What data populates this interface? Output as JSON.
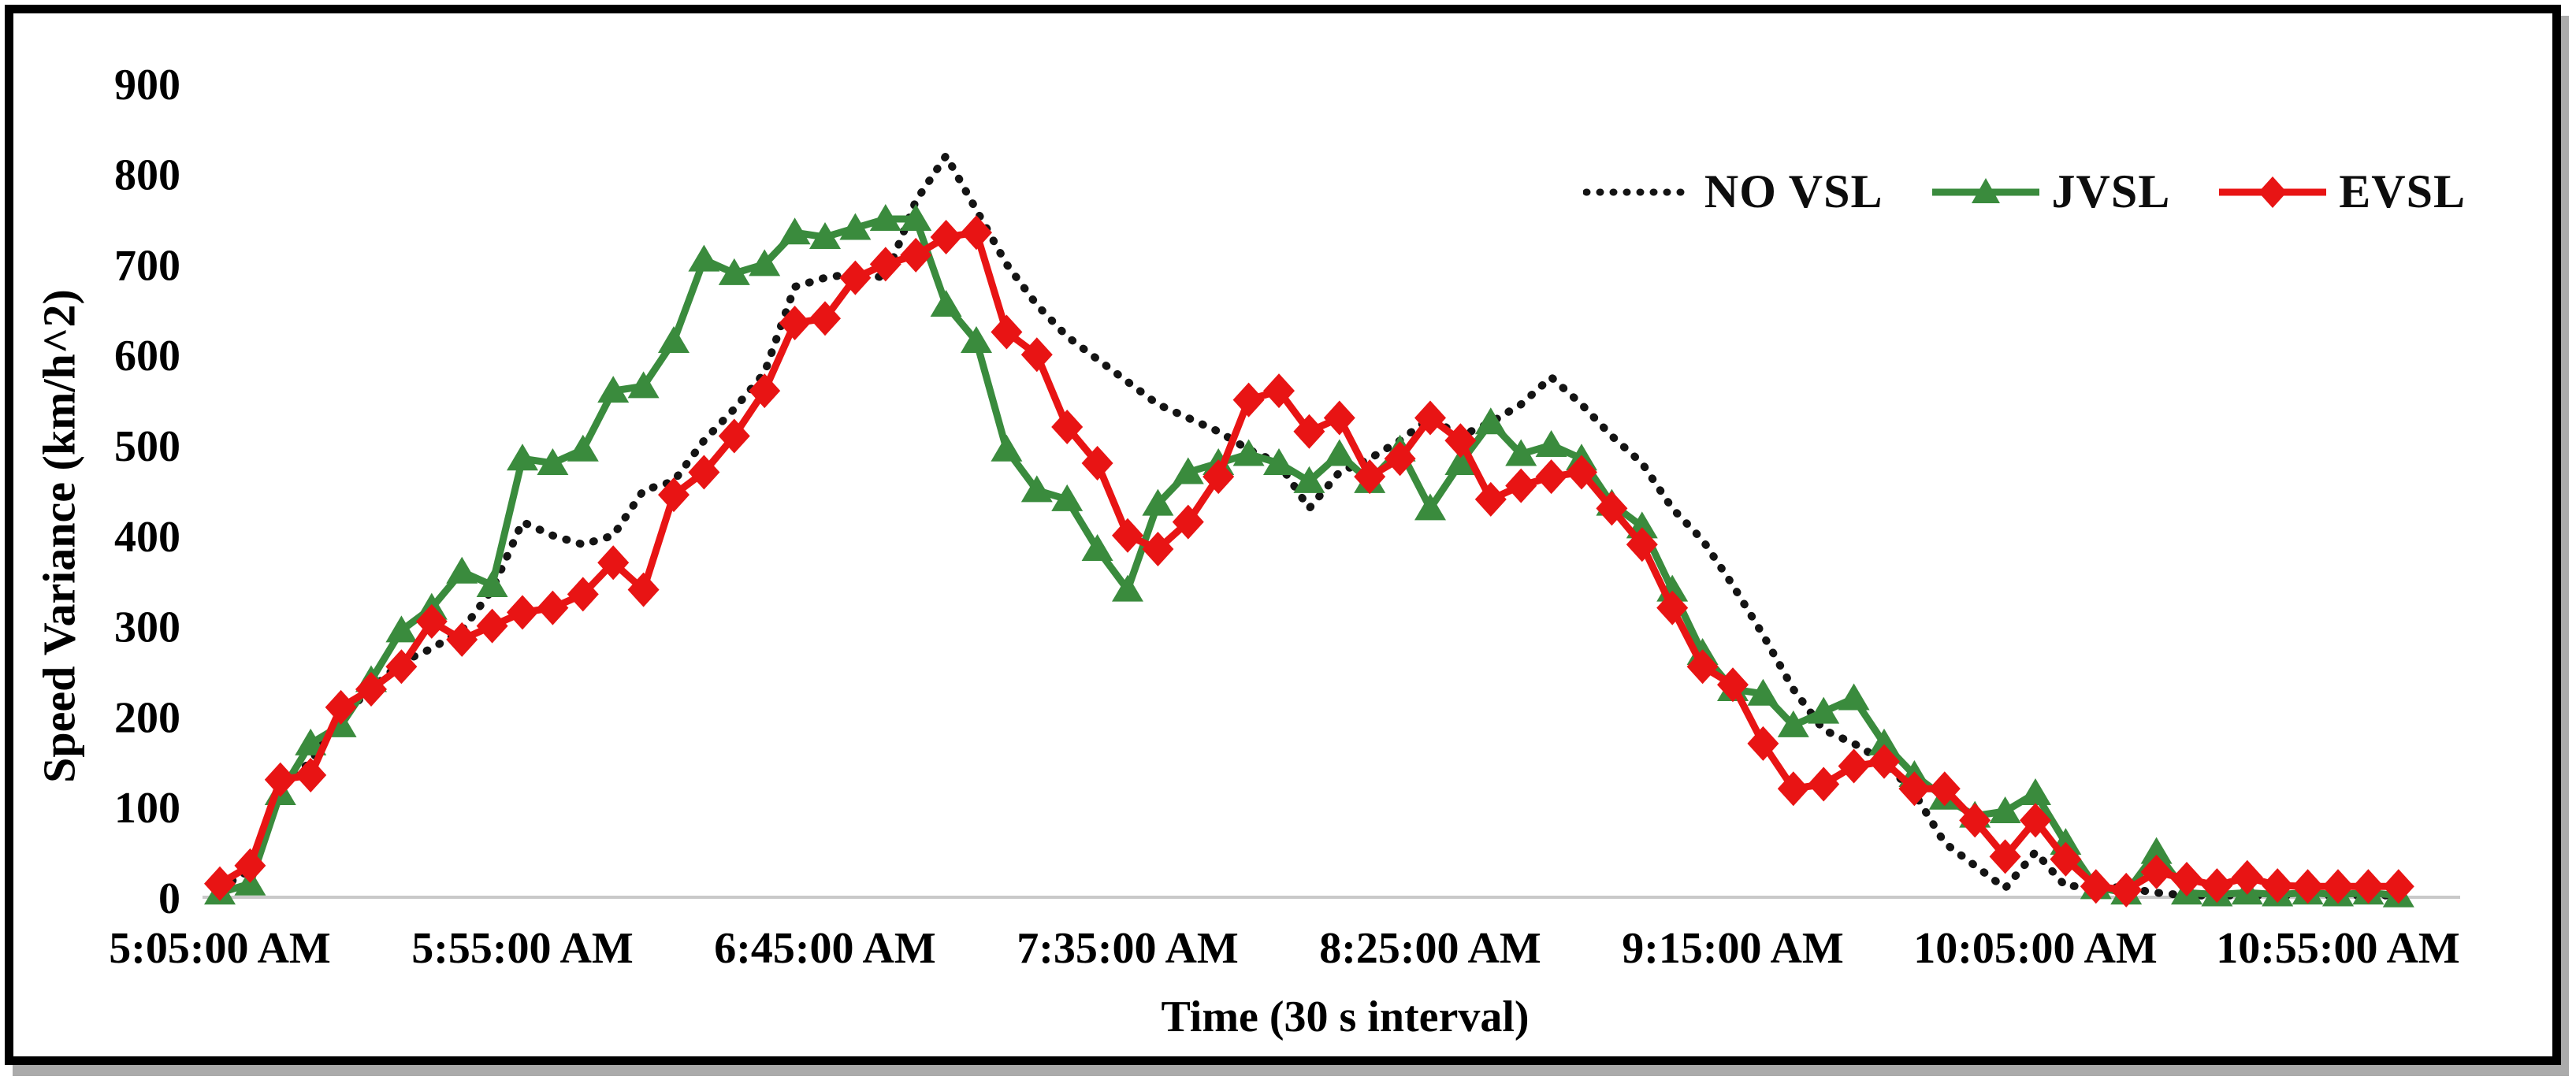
{
  "figure": {
    "background": "#ffffff",
    "border_color": "#000000"
  },
  "chart_data": {
    "type": "line",
    "title": "",
    "xlabel": "Time (30 s interval)",
    "ylabel": "Speed Variance (km/h^2)",
    "ylim": [
      0,
      900
    ],
    "grid": false,
    "legend_position": "top-right",
    "axis_line_color": "#c9c9c9",
    "y_ticks": [
      0,
      100,
      200,
      300,
      400,
      500,
      600,
      700,
      800,
      900
    ],
    "x_tick_labels": [
      "5:05:00 AM",
      "5:55:00 AM",
      "6:45:00 AM",
      "7:35:00 AM",
      "8:25:00 AM",
      "9:15:00 AM",
      "10:05:00 AM",
      "10:55:00 AM"
    ],
    "x": [
      "5:05:00 AM",
      "5:10:00 AM",
      "5:15:00 AM",
      "5:20:00 AM",
      "5:25:00 AM",
      "5:30:00 AM",
      "5:35:00 AM",
      "5:40:00 AM",
      "5:45:00 AM",
      "5:50:00 AM",
      "5:55:00 AM",
      "6:00:00 AM",
      "6:05:00 AM",
      "6:10:00 AM",
      "6:15:00 AM",
      "6:20:00 AM",
      "6:25:00 AM",
      "6:30:00 AM",
      "6:35:00 AM",
      "6:40:00 AM",
      "6:45:00 AM",
      "6:50:00 AM",
      "6:55:00 AM",
      "7:00:00 AM",
      "7:05:00 AM",
      "7:10:00 AM",
      "7:15:00 AM",
      "7:20:00 AM",
      "7:25:00 AM",
      "7:30:00 AM",
      "7:35:00 AM",
      "7:40:00 AM",
      "7:45:00 AM",
      "7:50:00 AM",
      "7:55:00 AM",
      "8:00:00 AM",
      "8:05:00 AM",
      "8:10:00 AM",
      "8:15:00 AM",
      "8:20:00 AM",
      "8:25:00 AM",
      "8:30:00 AM",
      "8:35:00 AM",
      "8:40:00 AM",
      "8:45:00 AM",
      "8:50:00 AM",
      "8:55:00 AM",
      "9:00:00 AM",
      "9:05:00 AM",
      "9:10:00 AM",
      "9:15:00 AM",
      "9:20:00 AM",
      "9:25:00 AM",
      "9:30:00 AM",
      "9:35:00 AM",
      "9:40:00 AM",
      "9:45:00 AM",
      "9:50:00 AM",
      "9:55:00 AM",
      "10:00:00 AM",
      "10:05:00 AM",
      "10:10:00 AM",
      "10:15:00 AM",
      "10:20:00 AM",
      "10:25:00 AM",
      "10:30:00 AM",
      "10:35:00 AM",
      "10:40:00 AM",
      "10:45:00 AM",
      "10:50:00 AM",
      "10:55:00 AM",
      "11:00:00 AM",
      "11:05:00 AM"
    ],
    "series": [
      {
        "name": "NO VSL",
        "color": "#141414",
        "line_style": "dotted",
        "marker": "none",
        "values": [
          10,
          30,
          120,
          150,
          200,
          230,
          260,
          275,
          295,
          340,
          415,
          400,
          390,
          400,
          450,
          460,
          505,
          540,
          580,
          675,
          685,
          690,
          685,
          770,
          820,
          760,
          700,
          655,
          620,
          595,
          570,
          545,
          530,
          515,
          495,
          480,
          430,
          470,
          485,
          505,
          530,
          510,
          525,
          545,
          575,
          545,
          510,
          480,
          430,
          395,
          345,
          290,
          230,
          185,
          170,
          150,
          115,
          60,
          35,
          10,
          50,
          12,
          13,
          10,
          5,
          2,
          2,
          2,
          2,
          2,
          2,
          2,
          2
        ]
      },
      {
        "name": "JVSL",
        "color": "#3a8b3d",
        "line_style": "solid",
        "marker": "triangle",
        "values": [
          5,
          15,
          115,
          170,
          190,
          240,
          295,
          320,
          360,
          345,
          485,
          480,
          495,
          560,
          565,
          615,
          705,
          690,
          700,
          735,
          730,
          740,
          750,
          750,
          655,
          615,
          495,
          450,
          440,
          385,
          340,
          435,
          470,
          480,
          490,
          480,
          460,
          490,
          460,
          495,
          430,
          480,
          525,
          490,
          500,
          485,
          435,
          410,
          340,
          270,
          230,
          225,
          190,
          205,
          220,
          170,
          135,
          110,
          90,
          95,
          115,
          60,
          11,
          5,
          50,
          5,
          3,
          5,
          3,
          5,
          3,
          5,
          2
        ]
      },
      {
        "name": "EVSL",
        "color": "#e81414",
        "line_style": "solid",
        "marker": "diamond",
        "values": [
          15,
          35,
          130,
          135,
          210,
          230,
          255,
          305,
          285,
          300,
          315,
          320,
          335,
          370,
          340,
          445,
          470,
          510,
          560,
          635,
          640,
          685,
          700,
          710,
          730,
          735,
          625,
          600,
          520,
          480,
          400,
          385,
          415,
          465,
          550,
          560,
          515,
          530,
          465,
          485,
          530,
          505,
          440,
          455,
          465,
          470,
          430,
          390,
          320,
          255,
          235,
          170,
          120,
          125,
          145,
          150,
          120,
          120,
          85,
          45,
          85,
          42,
          12,
          8,
          28,
          20,
          13,
          22,
          13,
          12,
          12,
          12,
          12
        ]
      }
    ]
  }
}
